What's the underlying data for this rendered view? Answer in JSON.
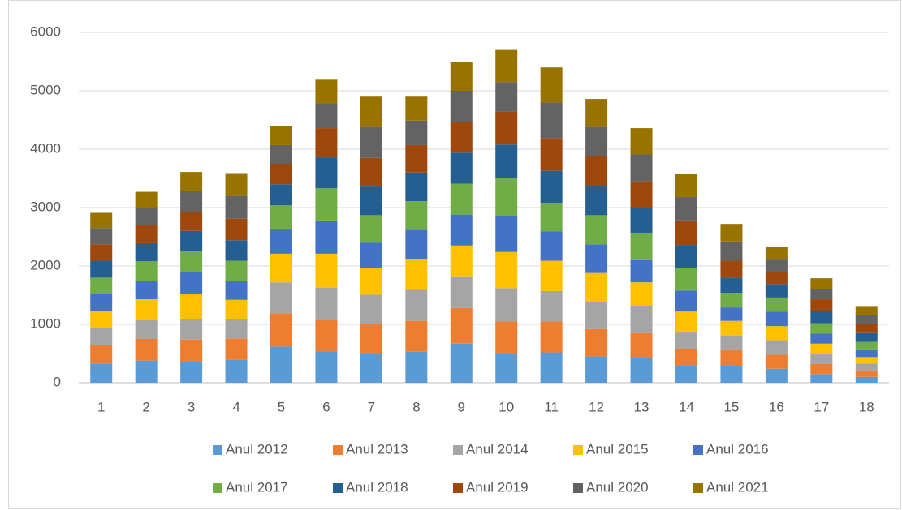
{
  "chart_data": {
    "type": "bar",
    "stacked": true,
    "categories": [
      "1",
      "2",
      "3",
      "4",
      "5",
      "6",
      "7",
      "8",
      "9",
      "10",
      "11",
      "12",
      "13",
      "14",
      "15",
      "16",
      "17",
      "18"
    ],
    "ylim": [
      0,
      6000
    ],
    "yticks": [
      0,
      1000,
      2000,
      3000,
      4000,
      5000,
      6000
    ],
    "grid": true,
    "legend": "bottom",
    "series": [
      {
        "name": "Anul 2012",
        "color": "#5b9bd5",
        "values": [
          330,
          380,
          360,
          390,
          620,
          540,
          500,
          530,
          670,
          490,
          520,
          450,
          420,
          280,
          280,
          240,
          150,
          100
        ]
      },
      {
        "name": "Anul 2013",
        "color": "#ed7d31",
        "values": [
          310,
          370,
          380,
          370,
          570,
          530,
          500,
          530,
          610,
          560,
          530,
          470,
          430,
          290,
          280,
          240,
          170,
          110
        ]
      },
      {
        "name": "Anul 2014",
        "color": "#a5a5a5",
        "values": [
          300,
          320,
          350,
          330,
          530,
          560,
          510,
          530,
          530,
          570,
          520,
          460,
          460,
          290,
          250,
          250,
          180,
          120
        ]
      },
      {
        "name": "Anul 2015",
        "color": "#ffc000",
        "values": [
          290,
          360,
          430,
          330,
          490,
          580,
          460,
          530,
          540,
          620,
          520,
          500,
          410,
          360,
          250,
          240,
          170,
          110
        ]
      },
      {
        "name": "Anul 2016",
        "color": "#4472c4",
        "values": [
          290,
          320,
          370,
          320,
          430,
          570,
          430,
          500,
          530,
          620,
          500,
          490,
          380,
          360,
          230,
          250,
          170,
          120
        ]
      },
      {
        "name": "Anul 2017",
        "color": "#70ad47",
        "values": [
          280,
          330,
          360,
          350,
          400,
          550,
          470,
          490,
          530,
          650,
          490,
          500,
          470,
          390,
          250,
          240,
          180,
          140
        ]
      },
      {
        "name": "Anul 2018",
        "color": "#255e91",
        "values": [
          290,
          310,
          350,
          350,
          360,
          530,
          490,
          490,
          530,
          570,
          550,
          500,
          430,
          390,
          260,
          230,
          210,
          150
        ]
      },
      {
        "name": "Anul 2019",
        "color": "#9e480e",
        "values": [
          280,
          310,
          330,
          370,
          350,
          500,
          490,
          470,
          530,
          560,
          560,
          510,
          450,
          420,
          290,
          210,
          200,
          150
        ]
      },
      {
        "name": "Anul 2020",
        "color": "#636363",
        "values": [
          280,
          290,
          350,
          390,
          320,
          430,
          530,
          420,
          530,
          510,
          610,
          500,
          460,
          400,
          330,
          210,
          180,
          160
        ]
      },
      {
        "name": "Anul 2021",
        "color": "#997300",
        "values": [
          260,
          280,
          330,
          390,
          330,
          400,
          520,
          410,
          500,
          550,
          600,
          480,
          450,
          390,
          300,
          210,
          180,
          140
        ]
      }
    ]
  }
}
